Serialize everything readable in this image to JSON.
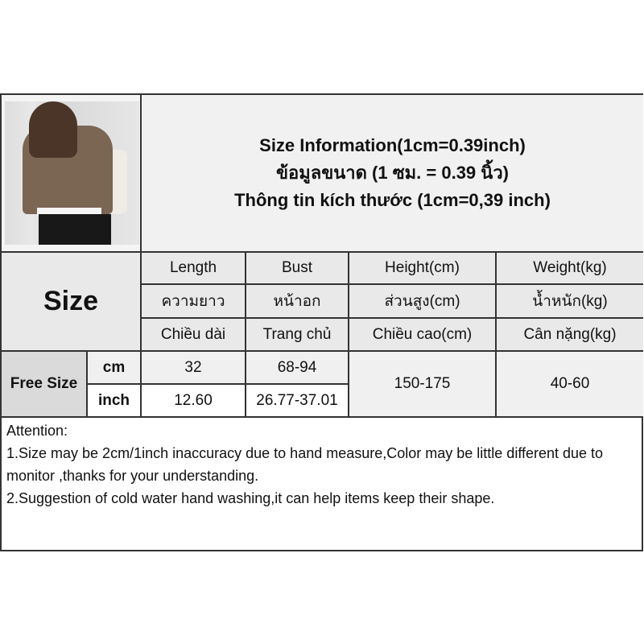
{
  "title_lines": [
    "Size Information(1cm=0.39inch)",
    "ข้อมูลขนาด (1 ซม. = 0.39 นิ้ว)",
    "Thông tin kích thước (1cm=0,39 inch)"
  ],
  "size_header": "Size",
  "columns": [
    {
      "en": "Length",
      "th": "ความยาว",
      "vi": "Chiều dài"
    },
    {
      "en": "Bust",
      "th": "หน้าอก",
      "vi": "Trang chủ"
    },
    {
      "en": "Height(cm)",
      "th": "ส่วนสูง(cm)",
      "vi": "Chiều cao(cm)"
    },
    {
      "en": "Weight(kg)",
      "th": "น้ำหนัก(kg)",
      "vi": "Cân nặng(kg)"
    }
  ],
  "row": {
    "size": "Free Size",
    "cm": {
      "unit": "cm",
      "length": "32",
      "bust": "68-94"
    },
    "inch": {
      "unit": "inch",
      "length": "12.60",
      "bust": "26.77-37.01"
    },
    "height": "150-175",
    "weight": "40-60"
  },
  "attention": {
    "heading": "Attention:",
    "line1": "1.Size may be 2cm/1inch inaccuracy due to hand measure,Color may be little different due to monitor ,thanks for your understanding.",
    "line2": "2.Suggestion of cold water hand washing,it can help items keep their shape."
  }
}
